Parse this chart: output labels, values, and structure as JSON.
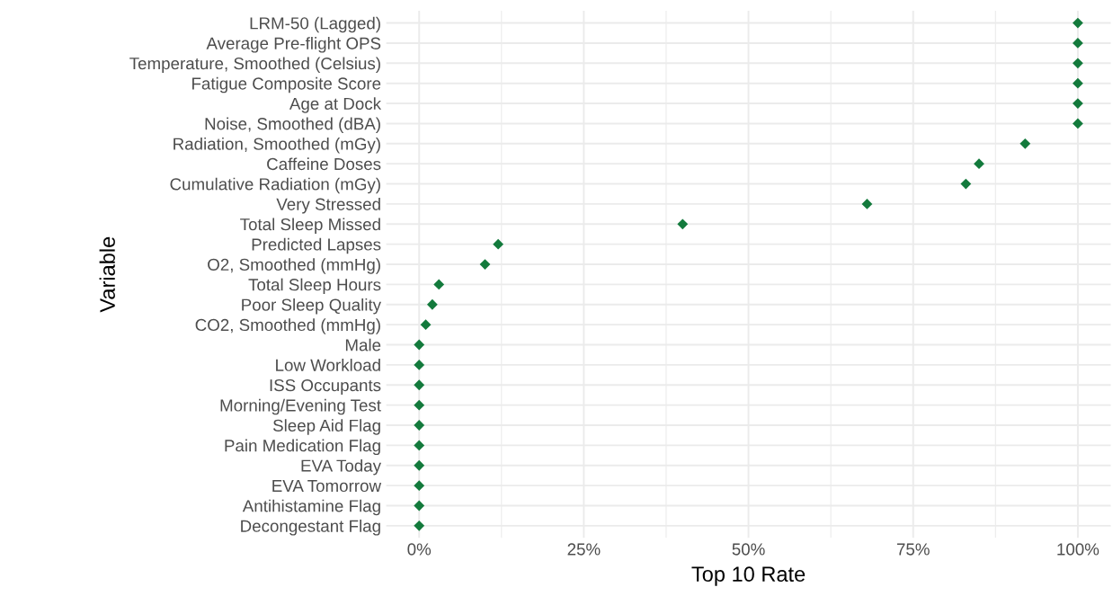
{
  "chart_data": {
    "type": "scatter",
    "orientation": "horizontal",
    "xlabel": "Top 10 Rate",
    "ylabel": "Variable",
    "categories": [
      "LRM-50 (Lagged)",
      "Average Pre-flight OPS",
      "Temperature, Smoothed (Celsius)",
      "Fatigue Composite Score",
      "Age at Dock",
      "Noise, Smoothed (dBA)",
      "Radiation, Smoothed (mGy)",
      "Caffeine Doses",
      "Cumulative Radiation (mGy)",
      "Very Stressed",
      "Total Sleep Missed",
      "Predicted Lapses",
      "O2, Smoothed (mmHg)",
      "Total Sleep Hours",
      "Poor Sleep Quality",
      "CO2, Smoothed (mmHg)",
      "Male",
      "Low Workload",
      "ISS Occupants",
      "Morning/Evening Test",
      "Sleep Aid Flag",
      "Pain Medication Flag",
      "EVA Today",
      "EVA Tomorrow",
      "Antihistamine Flag",
      "Decongestant Flag"
    ],
    "series": [
      {
        "color": "#137a3c",
        "values": [
          100,
          100,
          100,
          100,
          100,
          100,
          92,
          85,
          83,
          68,
          40,
          12,
          10,
          3,
          2,
          1,
          0,
          0,
          0,
          0,
          0,
          0,
          0,
          0,
          0,
          0
        ]
      }
    ],
    "xlim": [
      -5,
      105
    ],
    "xticks": [
      {
        "value": 0,
        "label": "0%"
      },
      {
        "value": 25,
        "label": "25%"
      },
      {
        "value": 50,
        "label": "50%"
      },
      {
        "value": 75,
        "label": "75%"
      },
      {
        "value": 100,
        "label": "100%"
      }
    ],
    "grid": true,
    "marker": "diamond",
    "legend": false
  }
}
